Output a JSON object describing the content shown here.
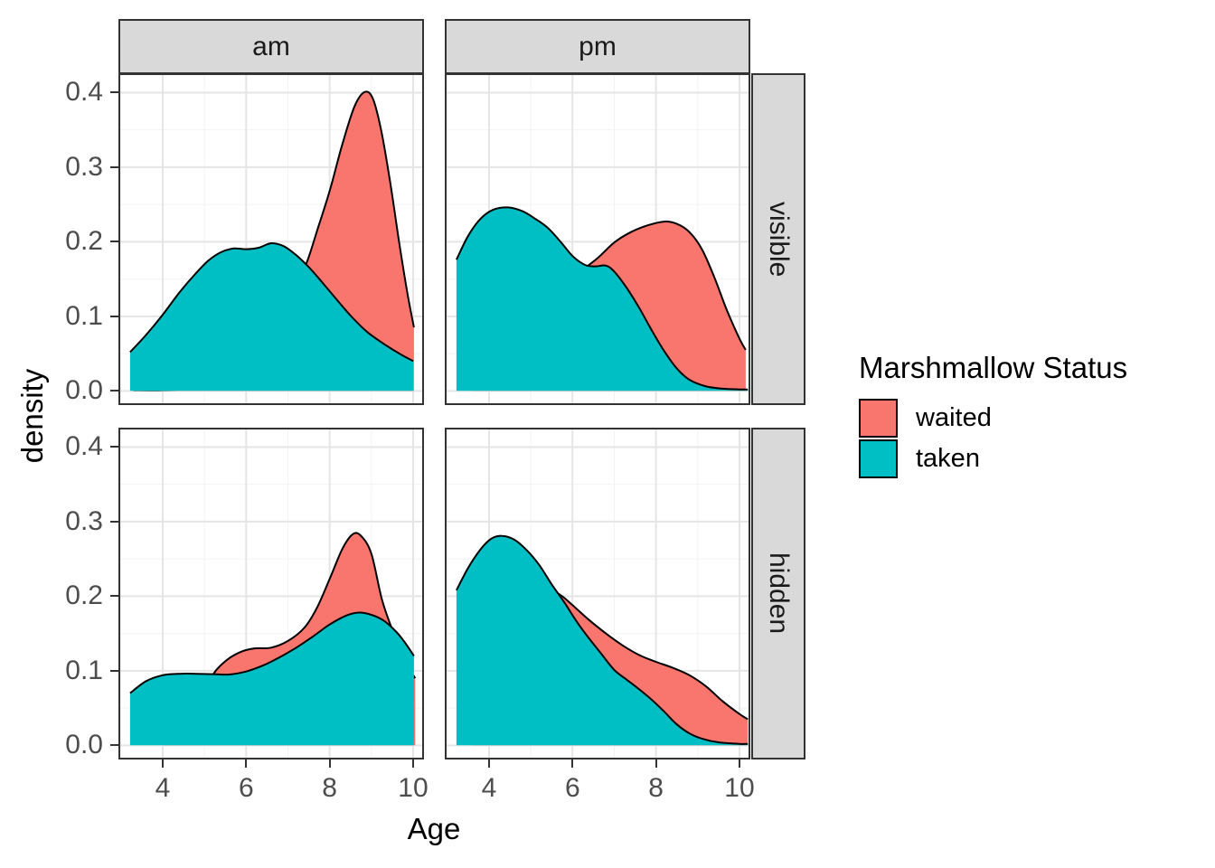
{
  "figure": {
    "facet_cols": [
      "am",
      "pm"
    ],
    "facet_rows": [
      "visible",
      "hidden"
    ],
    "x_title": "Age",
    "y_title": "density"
  },
  "legend": {
    "title": "Marshmallow Status",
    "items": [
      {
        "label": "waited",
        "color": "#F8766D"
      },
      {
        "label": "taken",
        "color": "#00BFC4"
      }
    ]
  },
  "style": {
    "strip_bg": "#D9D9D9",
    "panel_border": "#333333",
    "grid_major": "#E5E5E5",
    "grid_minor": "#F2F2F2",
    "outline": "#000000",
    "tick_text": "#4D4D4D"
  },
  "chart_data": {
    "type": "area",
    "subtype": "kernel-density",
    "title": "",
    "xlabel": "Age",
    "ylabel": "density",
    "legend_title": "Marshmallow Status",
    "legend_position": "right",
    "grid": true,
    "x_ticks": [
      4,
      6,
      8,
      10
    ],
    "x_minor": [
      3,
      5,
      7,
      9
    ],
    "y_ticks": [
      0.0,
      0.1,
      0.2,
      0.3,
      0.4
    ],
    "y_minor": [
      0.05,
      0.15,
      0.25,
      0.35
    ],
    "x_range": [
      2.94,
      10.26
    ],
    "y_range": [
      -0.019,
      0.426
    ],
    "facets": [
      {
        "col": "am",
        "row": "visible",
        "series": [
          {
            "name": "waited",
            "color": "#F8766D",
            "points": [
              [
                3.3,
                0.001
              ],
              [
                4.0,
                0.001
              ],
              [
                4.6,
                0.003
              ],
              [
                5.2,
                0.012
              ],
              [
                5.8,
                0.04
              ],
              [
                6.4,
                0.085
              ],
              [
                6.9,
                0.118
              ],
              [
                7.2,
                0.145
              ],
              [
                7.45,
                0.172
              ],
              [
                7.7,
                0.215
              ],
              [
                8.0,
                0.268
              ],
              [
                8.3,
                0.33
              ],
              [
                8.6,
                0.382
              ],
              [
                8.85,
                0.401
              ],
              [
                9.05,
                0.39
              ],
              [
                9.25,
                0.345
              ],
              [
                9.45,
                0.28
              ],
              [
                9.65,
                0.205
              ],
              [
                9.85,
                0.135
              ],
              [
                10.02,
                0.085
              ]
            ]
          },
          {
            "name": "taken",
            "color": "#00BFC4",
            "points": [
              [
                3.22,
                0.052
              ],
              [
                3.6,
                0.075
              ],
              [
                4.0,
                0.102
              ],
              [
                4.4,
                0.132
              ],
              [
                4.8,
                0.158
              ],
              [
                5.1,
                0.175
              ],
              [
                5.4,
                0.186
              ],
              [
                5.7,
                0.191
              ],
              [
                6.0,
                0.19
              ],
              [
                6.3,
                0.192
              ],
              [
                6.6,
                0.198
              ],
              [
                6.9,
                0.194
              ],
              [
                7.2,
                0.182
              ],
              [
                7.5,
                0.166
              ],
              [
                7.8,
                0.147
              ],
              [
                8.1,
                0.127
              ],
              [
                8.5,
                0.101
              ],
              [
                8.9,
                0.079
              ],
              [
                9.3,
                0.063
              ],
              [
                9.7,
                0.049
              ],
              [
                10.0,
                0.04
              ]
            ]
          }
        ]
      },
      {
        "col": "pm",
        "row": "visible",
        "series": [
          {
            "name": "waited",
            "color": "#F8766D",
            "points": [
              [
                3.6,
                0.012
              ],
              [
                4.2,
                0.032
              ],
              [
                4.8,
                0.065
              ],
              [
                5.3,
                0.1
              ],
              [
                5.8,
                0.135
              ],
              [
                6.2,
                0.16
              ],
              [
                6.6,
                0.178
              ],
              [
                7.0,
                0.199
              ],
              [
                7.4,
                0.213
              ],
              [
                7.8,
                0.222
              ],
              [
                8.2,
                0.227
              ],
              [
                8.5,
                0.224
              ],
              [
                8.8,
                0.213
              ],
              [
                9.1,
                0.19
              ],
              [
                9.4,
                0.152
              ],
              [
                9.7,
                0.108
              ],
              [
                10.0,
                0.07
              ],
              [
                10.15,
                0.055
              ]
            ]
          },
          {
            "name": "taken",
            "color": "#00BFC4",
            "points": [
              [
                3.22,
                0.176
              ],
              [
                3.5,
                0.208
              ],
              [
                3.8,
                0.231
              ],
              [
                4.1,
                0.243
              ],
              [
                4.45,
                0.246
              ],
              [
                4.8,
                0.241
              ],
              [
                5.1,
                0.231
              ],
              [
                5.4,
                0.219
              ],
              [
                5.7,
                0.201
              ],
              [
                6.0,
                0.181
              ],
              [
                6.3,
                0.169
              ],
              [
                6.55,
                0.167
              ],
              [
                6.8,
                0.168
              ],
              [
                7.0,
                0.16
              ],
              [
                7.3,
                0.138
              ],
              [
                7.6,
                0.111
              ],
              [
                7.9,
                0.081
              ],
              [
                8.2,
                0.053
              ],
              [
                8.5,
                0.03
              ],
              [
                8.8,
                0.015
              ],
              [
                9.2,
                0.006
              ],
              [
                9.6,
                0.003
              ],
              [
                10.0,
                0.002
              ],
              [
                10.2,
                0.002
              ]
            ]
          }
        ]
      },
      {
        "col": "am",
        "row": "hidden",
        "series": [
          {
            "name": "waited",
            "color": "#F8766D",
            "points": [
              [
                4.0,
                0.008
              ],
              [
                4.4,
                0.022
              ],
              [
                4.8,
                0.055
              ],
              [
                5.1,
                0.085
              ],
              [
                5.3,
                0.102
              ],
              [
                5.6,
                0.117
              ],
              [
                5.9,
                0.126
              ],
              [
                6.2,
                0.13
              ],
              [
                6.6,
                0.131
              ],
              [
                7.0,
                0.14
              ],
              [
                7.4,
                0.158
              ],
              [
                7.7,
                0.185
              ],
              [
                8.0,
                0.223
              ],
              [
                8.3,
                0.263
              ],
              [
                8.55,
                0.283
              ],
              [
                8.75,
                0.281
              ],
              [
                9.0,
                0.257
              ],
              [
                9.25,
                0.196
              ],
              [
                9.5,
                0.155
              ],
              [
                9.75,
                0.118
              ],
              [
                10.05,
                0.09
              ]
            ]
          },
          {
            "name": "taken",
            "color": "#00BFC4",
            "points": [
              [
                3.22,
                0.07
              ],
              [
                3.6,
                0.086
              ],
              [
                4.0,
                0.094
              ],
              [
                4.4,
                0.096
              ],
              [
                4.8,
                0.096
              ],
              [
                5.2,
                0.0955
              ],
              [
                5.6,
                0.095
              ],
              [
                6.0,
                0.099
              ],
              [
                6.4,
                0.107
              ],
              [
                6.8,
                0.118
              ],
              [
                7.2,
                0.131
              ],
              [
                7.6,
                0.146
              ],
              [
                8.0,
                0.162
              ],
              [
                8.4,
                0.174
              ],
              [
                8.7,
                0.178
              ],
              [
                9.0,
                0.175
              ],
              [
                9.3,
                0.167
              ],
              [
                9.6,
                0.152
              ],
              [
                9.8,
                0.138
              ],
              [
                10.02,
                0.12
              ]
            ]
          }
        ]
      },
      {
        "col": "pm",
        "row": "hidden",
        "series": [
          {
            "name": "waited",
            "color": "#F8766D",
            "points": [
              [
                3.6,
                0.02
              ],
              [
                4.0,
                0.048
              ],
              [
                4.4,
                0.09
              ],
              [
                4.8,
                0.14
              ],
              [
                5.1,
                0.178
              ],
              [
                5.4,
                0.208
              ],
              [
                5.7,
                0.202
              ],
              [
                6.0,
                0.188
              ],
              [
                6.4,
                0.168
              ],
              [
                6.8,
                0.15
              ],
              [
                7.2,
                0.134
              ],
              [
                7.6,
                0.121
              ],
              [
                8.0,
                0.112
              ],
              [
                8.4,
                0.104
              ],
              [
                8.8,
                0.094
              ],
              [
                9.2,
                0.079
              ],
              [
                9.6,
                0.059
              ],
              [
                10.0,
                0.042
              ],
              [
                10.2,
                0.035
              ]
            ]
          },
          {
            "name": "taken",
            "color": "#00BFC4",
            "points": [
              [
                3.22,
                0.208
              ],
              [
                3.5,
                0.238
              ],
              [
                3.8,
                0.263
              ],
              [
                4.05,
                0.277
              ],
              [
                4.3,
                0.281
              ],
              [
                4.6,
                0.276
              ],
              [
                4.9,
                0.262
              ],
              [
                5.2,
                0.242
              ],
              [
                5.5,
                0.216
              ],
              [
                5.8,
                0.192
              ],
              [
                6.1,
                0.166
              ],
              [
                6.4,
                0.143
              ],
              [
                6.7,
                0.122
              ],
              [
                7.0,
                0.101
              ],
              [
                7.3,
                0.088
              ],
              [
                7.6,
                0.075
              ],
              [
                7.9,
                0.061
              ],
              [
                8.2,
                0.045
              ],
              [
                8.5,
                0.028
              ],
              [
                8.8,
                0.016
              ],
              [
                9.1,
                0.009
              ],
              [
                9.5,
                0.004
              ],
              [
                10.0,
                0.002
              ],
              [
                10.2,
                0.002
              ]
            ]
          }
        ]
      }
    ]
  }
}
